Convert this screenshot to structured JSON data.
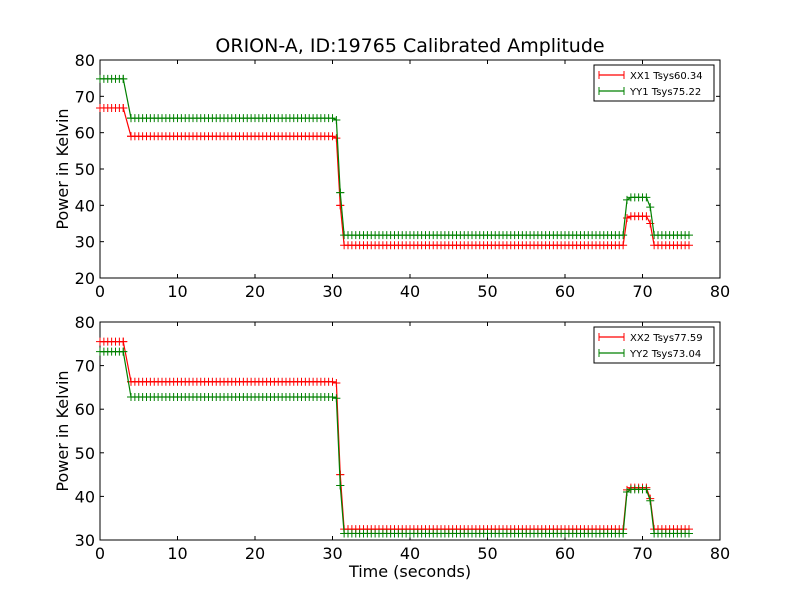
{
  "chart_data": [
    {
      "type": "line",
      "title": "ORION-A, ID:19765 Calibrated Amplitude",
      "xlabel": "",
      "ylabel": "Power in Kelvin",
      "xlim": [
        0,
        80
      ],
      "ylim": [
        20,
        80
      ],
      "xticks": [
        0,
        10,
        20,
        30,
        40,
        50,
        60,
        70,
        80
      ],
      "yticks": [
        20,
        30,
        40,
        50,
        60,
        70,
        80
      ],
      "legend_position": "top-right",
      "grid": false,
      "series": [
        {
          "name": "XX1 Tsys60.34",
          "color": "#ff0000",
          "marker": "plus",
          "segments": [
            {
              "from": 0,
              "to": 3,
              "value": 66.8
            },
            {
              "from": 4,
              "to": 30,
              "value": 59.0
            },
            {
              "at": 31,
              "value": 40
            },
            {
              "from": 31.5,
              "to": 67.5,
              "value": 29.0
            },
            {
              "at": 68,
              "value": 36.5
            },
            {
              "from": 68.5,
              "to": 70.5,
              "value": 37.0
            },
            {
              "at": 71,
              "value": 35
            },
            {
              "from": 71.5,
              "to": 76,
              "value": 29.0
            }
          ],
          "transitions": [
            {
              "from_x": 3.0,
              "to_x": 4.0,
              "from_y": 66.8,
              "to_y": 59.0
            },
            {
              "from_x": 30.5,
              "to_x": 31.0,
              "from_y": 58.5,
              "to_y": 40.0
            }
          ]
        },
        {
          "name": "YY1 Tsys75.22",
          "color": "#008000",
          "marker": "plus",
          "segments": [
            {
              "from": 0,
              "to": 3,
              "value": 74.8
            },
            {
              "from": 4,
              "to": 30,
              "value": 64.0
            },
            {
              "at": 31,
              "value": 43.5
            },
            {
              "from": 31.5,
              "to": 67.5,
              "value": 31.8
            },
            {
              "at": 68,
              "value": 41.5
            },
            {
              "from": 68.5,
              "to": 70.5,
              "value": 42.2
            },
            {
              "at": 71,
              "value": 39.5
            },
            {
              "from": 71.5,
              "to": 76,
              "value": 31.8
            }
          ],
          "transitions": [
            {
              "from_x": 3.0,
              "to_x": 4.0,
              "from_y": 74.8,
              "to_y": 64.0
            },
            {
              "from_x": 30.5,
              "to_x": 31.0,
              "from_y": 63.5,
              "to_y": 43.5
            }
          ]
        }
      ]
    },
    {
      "type": "line",
      "title": "",
      "xlabel": "Time (seconds)",
      "ylabel": "Power in Kelvin",
      "xlim": [
        0,
        80
      ],
      "ylim": [
        30,
        80
      ],
      "xticks": [
        0,
        10,
        20,
        30,
        40,
        50,
        60,
        70,
        80
      ],
      "yticks": [
        30,
        40,
        50,
        60,
        70,
        80
      ],
      "legend_position": "top-right",
      "grid": false,
      "series": [
        {
          "name": "XX2 Tsys77.59",
          "color": "#ff0000",
          "marker": "plus",
          "segments": [
            {
              "from": 0,
              "to": 3,
              "value": 75.5
            },
            {
              "from": 4,
              "to": 30,
              "value": 66.3
            },
            {
              "at": 31,
              "value": 45.0
            },
            {
              "from": 31.5,
              "to": 67.5,
              "value": 32.5
            },
            {
              "at": 68,
              "value": 41.5
            },
            {
              "from": 68.5,
              "to": 70.5,
              "value": 42.0
            },
            {
              "at": 71,
              "value": 39.5
            },
            {
              "from": 71.5,
              "to": 76,
              "value": 32.5
            }
          ],
          "transitions": [
            {
              "from_x": 3.0,
              "to_x": 4.0,
              "from_y": 75.5,
              "to_y": 66.3
            },
            {
              "from_x": 30.5,
              "to_x": 31.0,
              "from_y": 66.0,
              "to_y": 45.0
            }
          ]
        },
        {
          "name": "YY2 Tsys73.04",
          "color": "#008000",
          "marker": "plus",
          "segments": [
            {
              "from": 0,
              "to": 3,
              "value": 73.2
            },
            {
              "from": 4,
              "to": 30,
              "value": 62.8
            },
            {
              "at": 31,
              "value": 42.5
            },
            {
              "from": 31.5,
              "to": 67.5,
              "value": 31.5
            },
            {
              "at": 68,
              "value": 41.0
            },
            {
              "from": 68.5,
              "to": 70.5,
              "value": 41.6
            },
            {
              "at": 71,
              "value": 39.0
            },
            {
              "from": 71.5,
              "to": 76,
              "value": 31.5
            }
          ],
          "transitions": [
            {
              "from_x": 3.0,
              "to_x": 4.0,
              "from_y": 73.2,
              "to_y": 62.8
            },
            {
              "from_x": 30.5,
              "to_x": 31.0,
              "from_y": 62.5,
              "to_y": 42.5
            }
          ]
        }
      ]
    }
  ]
}
